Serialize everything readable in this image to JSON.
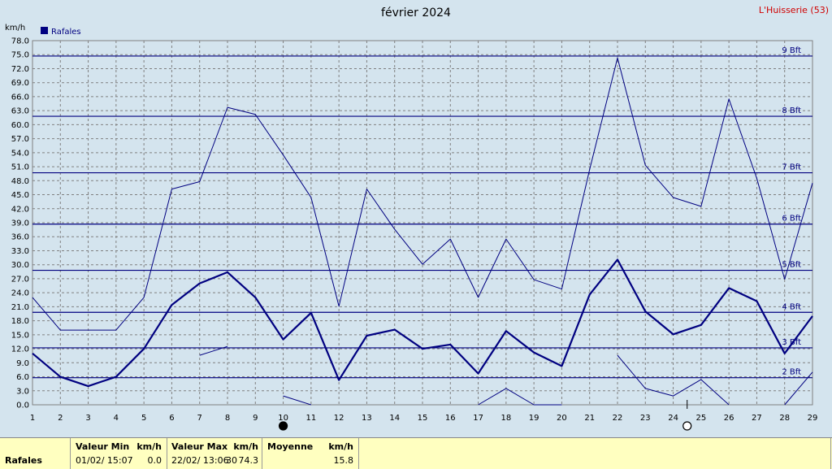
{
  "header": {
    "title": "février 2024",
    "location": "L'Huisserie (53)",
    "unit": "km/h",
    "legend_label": "Rafales",
    "legend_color": "#000080"
  },
  "chart_data": {
    "type": "line",
    "x": [
      1,
      2,
      3,
      4,
      5,
      6,
      7,
      8,
      9,
      10,
      11,
      12,
      13,
      14,
      15,
      16,
      17,
      18,
      19,
      20,
      21,
      22,
      23,
      24,
      25,
      26,
      27,
      28,
      29
    ],
    "xlim": [
      1,
      29
    ],
    "ylim": [
      0,
      78
    ],
    "y_ticks": [
      "0.0",
      "3.0",
      "6.0",
      "9.0",
      "12.0",
      "15.0",
      "18.0",
      "21.0",
      "24.0",
      "27.0",
      "30.0",
      "33.0",
      "36.0",
      "39.0",
      "42.0",
      "45.0",
      "48.0",
      "51.0",
      "54.0",
      "57.0",
      "60.0",
      "63.0",
      "66.0",
      "69.0",
      "72.0",
      "75.0",
      "78.0"
    ],
    "x_ticks": [
      "1",
      "2",
      "3",
      "4",
      "5",
      "6",
      "7",
      "8",
      "9",
      "10",
      "11",
      "12",
      "13",
      "14",
      "15",
      "16",
      "17",
      "18",
      "19",
      "20",
      "21",
      "22",
      "23",
      "24",
      "25",
      "26",
      "27",
      "28",
      "29"
    ],
    "grid": true,
    "series": [
      {
        "role": "max",
        "values": [
          23.0,
          16.0,
          16.0,
          16.0,
          23.0,
          46.2,
          47.8,
          63.7,
          62.2,
          53.5,
          44.4,
          21.1,
          46.2,
          37.6,
          30.1,
          35.5,
          23.0,
          35.5,
          26.8,
          24.8,
          50.4,
          74.3,
          51.3,
          44.4,
          42.5,
          65.5,
          48.5,
          26.9,
          47.5
        ]
      },
      {
        "role": "mean",
        "values": [
          11.0,
          6.0,
          4.0,
          6.0,
          12.0,
          21.4,
          26.0,
          28.4,
          23.0,
          14.0,
          19.7,
          5.3,
          14.8,
          16.1,
          12.0,
          12.9,
          6.7,
          15.8,
          11.2,
          8.3,
          23.6,
          31.1,
          20.0,
          15.1,
          17.1,
          25.0,
          22.2,
          11.0,
          19.0
        ]
      },
      {
        "role": "min",
        "values": [
          null,
          null,
          null,
          null,
          0.0,
          null,
          10.6,
          12.5,
          null,
          1.9,
          0.0,
          null,
          null,
          null,
          null,
          null,
          0.0,
          3.5,
          0.0,
          0.0,
          null,
          10.6,
          3.5,
          1.9,
          5.4,
          0.0,
          null,
          0.0,
          7.0
        ]
      }
    ],
    "beaufort_lines": [
      {
        "value": 5.8,
        "label": "2 Bft"
      },
      {
        "value": 12.2,
        "label": "3 Bft"
      },
      {
        "value": 19.8,
        "label": "4 Bft"
      },
      {
        "value": 28.8,
        "label": "5 Bft"
      },
      {
        "value": 38.7,
        "label": "6 Bft"
      },
      {
        "value": 49.7,
        "label": "7 Bft"
      },
      {
        "value": 61.8,
        "label": "8 Bft"
      },
      {
        "value": 74.7,
        "label": "9 Bft"
      }
    ],
    "moon_phases": [
      {
        "x": 10,
        "phase": "new-moon"
      },
      {
        "x": 24.5,
        "phase": "full-moon"
      }
    ]
  },
  "stats": {
    "row_label": "Rafales",
    "min_header": "Valeur Min",
    "min_unit_header": "km/h",
    "min_time": "01/02/  15:07",
    "min_value": "0.0",
    "max_header": "Valeur Max",
    "max_unit_header": "km/h",
    "max_time": "22/02/  13:06",
    "max_value": "74.3",
    "max_overlap": "30",
    "mean_header": "Moyenne",
    "mean_unit_header": "km/h",
    "mean_value": "15.8"
  }
}
